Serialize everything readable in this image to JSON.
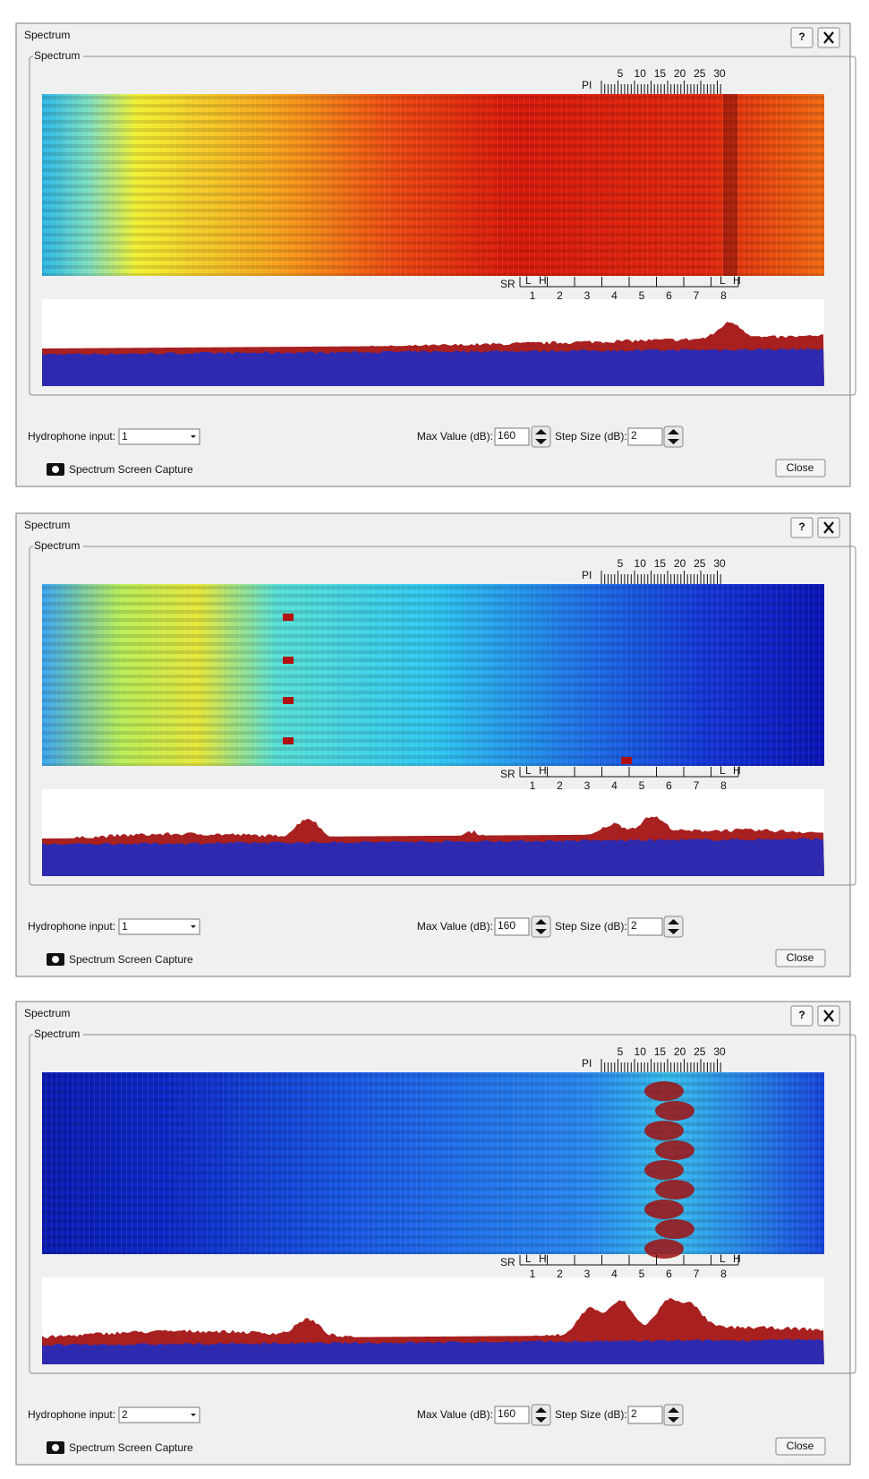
{
  "windows": [
    {
      "title": "Spectrum",
      "help_button": "?",
      "group_label": "Spectrum",
      "pi_label": "PI",
      "pi_ticks": [
        5,
        10,
        15,
        20,
        25,
        30
      ],
      "sr_label": "SR",
      "sr_low": "L",
      "sr_high": "H",
      "sr_ticks": [
        1,
        2,
        3,
        4,
        5,
        6,
        7,
        8
      ],
      "hydrophone_label": "Hydrophone input:",
      "hydrophone_value": "1",
      "max_value_label": "Max Value (dB):",
      "max_value": "160",
      "step_size_label": "Step Size (dB):",
      "step_size": "2",
      "capture_label": "Spectrum Screen Capture",
      "close_button": "Close"
    },
    {
      "title": "Spectrum",
      "help_button": "?",
      "group_label": "Spectrum",
      "pi_label": "PI",
      "pi_ticks": [
        5,
        10,
        15,
        20,
        25,
        30
      ],
      "sr_label": "SR",
      "sr_low": "L",
      "sr_high": "H",
      "sr_ticks": [
        1,
        2,
        3,
        4,
        5,
        6,
        7,
        8
      ],
      "hydrophone_label": "Hydrophone input:",
      "hydrophone_value": "1",
      "max_value_label": "Max Value (dB):",
      "max_value": "160",
      "step_size_label": "Step Size (dB):",
      "step_size": "2",
      "capture_label": "Spectrum Screen Capture",
      "close_button": "Close"
    },
    {
      "title": "Spectrum",
      "help_button": "?",
      "group_label": "Spectrum",
      "pi_label": "PI",
      "pi_ticks": [
        5,
        10,
        15,
        20,
        25,
        30
      ],
      "sr_label": "SR",
      "sr_low": "L",
      "sr_high": "H",
      "sr_ticks": [
        1,
        2,
        3,
        4,
        5,
        6,
        7,
        8
      ],
      "hydrophone_label": "Hydrophone input:",
      "hydrophone_value": "2",
      "max_value_label": "Max Value (dB):",
      "max_value": "160",
      "step_size_label": "Step Size (dB):",
      "step_size": "2",
      "capture_label": "Spectrum Screen Capture",
      "close_button": "Close"
    }
  ]
}
